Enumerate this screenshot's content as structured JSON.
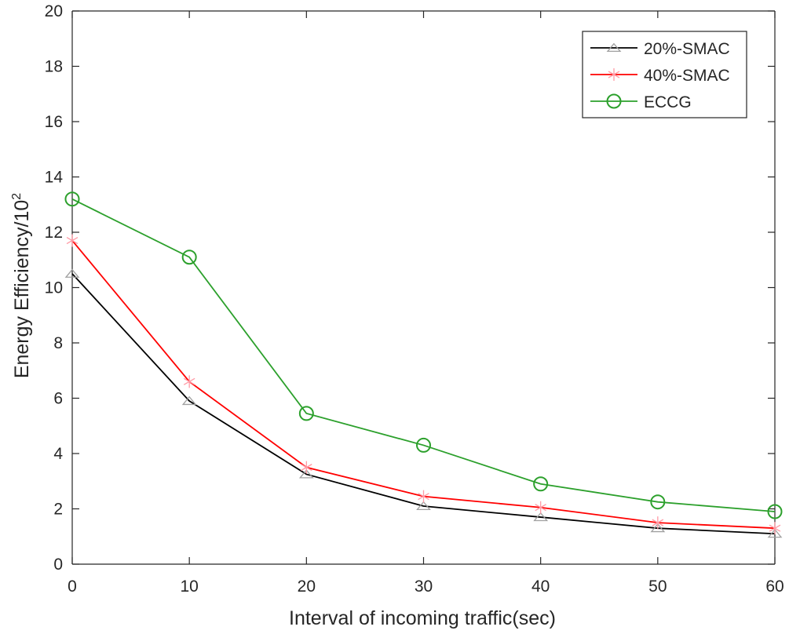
{
  "chart_data": {
    "type": "line",
    "title": "",
    "xlabel": "Interval of incoming traffic(sec)",
    "ylabel": "Energy Efficiency/10",
    "ylabel_superscript": "2",
    "x": [
      0,
      10,
      20,
      30,
      40,
      50,
      60
    ],
    "xlim": [
      0,
      60
    ],
    "ylim": [
      0,
      20
    ],
    "xticks": [
      0,
      10,
      20,
      30,
      40,
      50,
      60
    ],
    "yticks": [
      0,
      2,
      4,
      6,
      8,
      10,
      12,
      14,
      16,
      18,
      20
    ],
    "grid": false,
    "legend_position": "top-right",
    "series": [
      {
        "name": "20%-SMAC",
        "values": [
          10.5,
          5.9,
          3.25,
          2.1,
          1.7,
          1.3,
          1.1
        ],
        "line_color": "#000000",
        "marker": "triangle",
        "marker_color": "#a0a0a0"
      },
      {
        "name": "40%-SMAC",
        "values": [
          11.7,
          6.6,
          3.5,
          2.45,
          2.05,
          1.5,
          1.3
        ],
        "line_color": "#ff0000",
        "marker": "asterisk",
        "marker_color": "#ff9aa5"
      },
      {
        "name": "ECCG",
        "values": [
          13.2,
          11.1,
          5.45,
          4.3,
          2.9,
          2.25,
          1.9
        ],
        "line_color": "#2ca02c",
        "marker": "circle",
        "marker_color": "#2ca02c"
      }
    ]
  }
}
